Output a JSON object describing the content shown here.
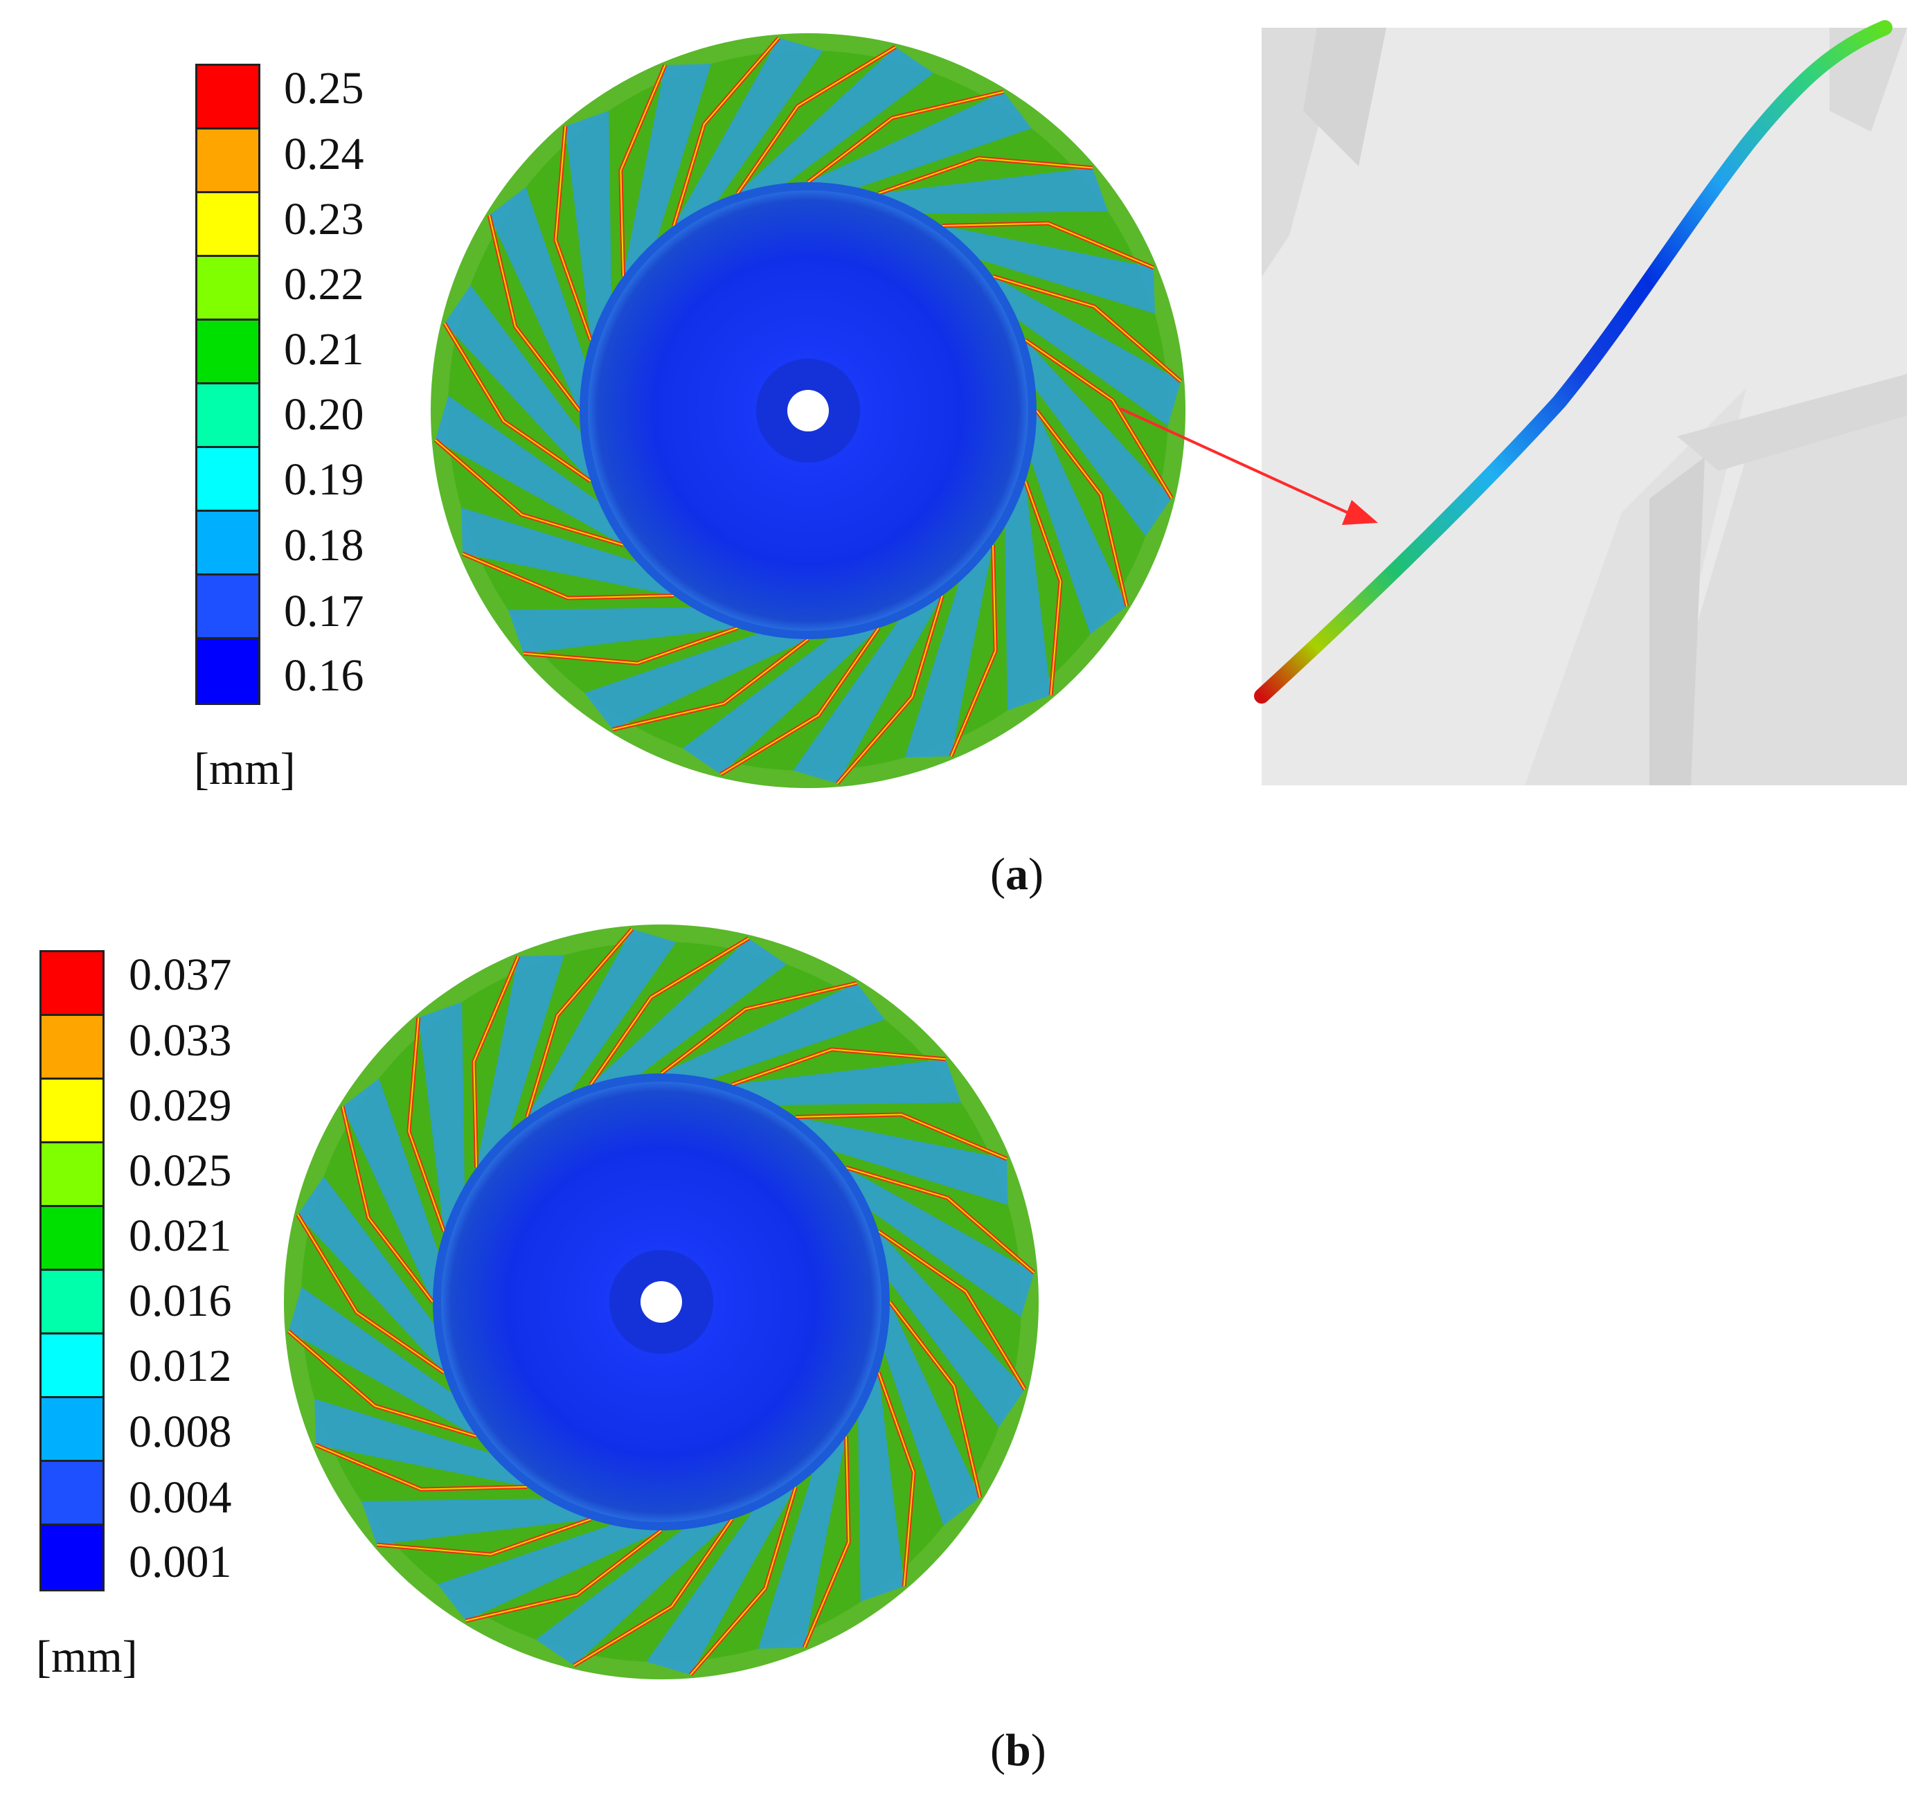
{
  "panels": [
    {
      "id": "a",
      "caption_letter": "a",
      "legend": {
        "labels": [
          "0.25",
          "0.24",
          "0.23",
          "0.22",
          "0.21",
          "0.20",
          "0.19",
          "0.18",
          "0.17",
          "0.16"
        ],
        "unit": "[mm]",
        "colors": [
          "#ff0000",
          "#ffa500",
          "#ffff00",
          "#80ff00",
          "#00e000",
          "#00ffaa",
          "#00ffff",
          "#00b0ff",
          "#1e50ff",
          "#0000ff"
        ]
      }
    },
    {
      "id": "b",
      "caption_letter": "b",
      "legend": {
        "labels": [
          "0.037",
          "0.033",
          "0.029",
          "0.025",
          "0.021",
          "0.016",
          "0.012",
          "0.008",
          "0.004",
          "0.001"
        ],
        "unit": "[mm]",
        "colors": [
          "#ff0000",
          "#ffa500",
          "#ffff00",
          "#80ff00",
          "#00e000",
          "#00ffaa",
          "#00ffff",
          "#00b0ff",
          "#1e50ff",
          "#0000ff"
        ]
      }
    }
  ],
  "annotation_arrow_color": "#ff2a2a"
}
